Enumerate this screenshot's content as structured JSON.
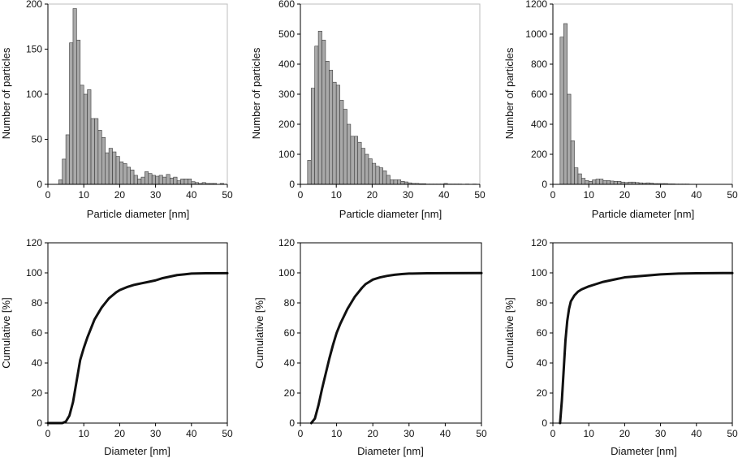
{
  "colors": {
    "bar_fill": "#a9a9a9",
    "bar_stroke": "#3a3a3a",
    "axis": "#000000",
    "curve": "#111111",
    "background": "#ffffff"
  },
  "chart_data": [
    {
      "type": "bar",
      "xlabel": "Particle diameter [nm]",
      "ylabel": "Number of particles",
      "xlim": [
        0,
        50
      ],
      "ylim": [
        0,
        200
      ],
      "xticks": [
        0,
        10,
        20,
        30,
        40,
        50
      ],
      "yticks": [
        0,
        50,
        100,
        150,
        200
      ],
      "bin_width": 1,
      "bin_starts": [
        3,
        4,
        5,
        6,
        7,
        8,
        9,
        10,
        11,
        12,
        13,
        14,
        15,
        16,
        17,
        18,
        19,
        20,
        21,
        22,
        23,
        24,
        25,
        26,
        27,
        28,
        29,
        30,
        31,
        32,
        33,
        34,
        35,
        36,
        37,
        38,
        39,
        40,
        41,
        42,
        43,
        44,
        45,
        46,
        47,
        48,
        49
      ],
      "values": [
        5,
        28,
        55,
        157,
        195,
        160,
        110,
        100,
        105,
        73,
        73,
        60,
        52,
        35,
        40,
        36,
        31,
        25,
        23,
        19,
        16,
        10,
        6,
        8,
        14,
        12,
        10,
        9,
        10,
        8,
        11,
        7,
        8,
        4,
        6,
        6,
        6,
        3,
        2,
        1,
        2,
        1,
        1,
        1,
        0,
        1,
        0
      ],
      "legend": "none",
      "grid": false
    },
    {
      "type": "bar",
      "xlabel": "Particle diameter [nm]",
      "ylabel": "Number of particles",
      "xlim": [
        0,
        50
      ],
      "ylim": [
        0,
        600
      ],
      "xticks": [
        0,
        10,
        20,
        30,
        40,
        50
      ],
      "yticks": [
        0,
        100,
        200,
        300,
        400,
        500,
        600
      ],
      "bin_width": 1,
      "bin_starts": [
        2,
        3,
        4,
        5,
        6,
        7,
        8,
        9,
        10,
        11,
        12,
        13,
        14,
        15,
        16,
        17,
        18,
        19,
        20,
        21,
        22,
        23,
        24,
        25,
        26,
        27,
        28,
        29,
        30,
        31,
        32,
        33,
        34,
        35,
        36,
        37,
        38,
        39,
        40,
        41,
        42,
        43,
        44,
        45,
        46,
        47,
        48,
        49
      ],
      "values": [
        80,
        320,
        460,
        510,
        480,
        410,
        380,
        340,
        330,
        280,
        250,
        200,
        160,
        160,
        140,
        120,
        100,
        85,
        70,
        60,
        55,
        45,
        30,
        15,
        15,
        15,
        10,
        8,
        5,
        3,
        3,
        2,
        2,
        1,
        1,
        1,
        1,
        1,
        3,
        1,
        1,
        1,
        1,
        0,
        1,
        0,
        1,
        0
      ],
      "legend": "none",
      "grid": false
    },
    {
      "type": "bar",
      "xlabel": "Particle diameter [nm]",
      "ylabel": "Number of particles",
      "xlim": [
        0,
        50
      ],
      "ylim": [
        0,
        1200
      ],
      "xticks": [
        0,
        10,
        20,
        30,
        40,
        50
      ],
      "yticks": [
        0,
        200,
        400,
        600,
        800,
        1000,
        1200
      ],
      "bin_width": 1,
      "bin_starts": [
        2,
        3,
        4,
        5,
        6,
        7,
        8,
        9,
        10,
        11,
        12,
        13,
        14,
        15,
        16,
        17,
        18,
        19,
        20,
        21,
        22,
        23,
        24,
        25,
        26,
        27,
        28,
        29,
        30,
        31,
        32,
        33,
        34,
        35,
        36,
        37,
        38,
        39,
        40,
        41,
        42,
        43,
        44,
        45,
        46,
        47,
        48,
        49
      ],
      "values": [
        980,
        1070,
        600,
        290,
        110,
        70,
        40,
        25,
        20,
        30,
        35,
        35,
        25,
        25,
        22,
        20,
        20,
        15,
        12,
        15,
        15,
        12,
        10,
        8,
        10,
        8,
        5,
        5,
        5,
        5,
        3,
        3,
        2,
        2,
        2,
        2,
        1,
        1,
        1,
        1,
        1,
        1,
        1,
        1,
        1,
        1,
        1,
        1
      ],
      "legend": "none",
      "grid": false
    },
    {
      "type": "line",
      "xlabel": "Diameter [nm]",
      "ylabel": "Cumulative [%]",
      "xlim": [
        0,
        50
      ],
      "ylim": [
        0,
        120
      ],
      "xticks": [
        0,
        10,
        20,
        30,
        40,
        50
      ],
      "yticks": [
        0,
        20,
        40,
        60,
        80,
        100,
        120
      ],
      "x": [
        0,
        4,
        5,
        6,
        7,
        8,
        9,
        10,
        11,
        12,
        13,
        14,
        15,
        16,
        17,
        18,
        19,
        20,
        22,
        24,
        25,
        26,
        28,
        30,
        32,
        34,
        36,
        38,
        40,
        44,
        50
      ],
      "y": [
        0,
        0,
        1,
        5,
        14,
        28,
        42,
        50,
        57,
        63,
        69,
        73,
        77,
        80,
        83,
        85,
        87,
        88.5,
        90.5,
        92,
        92.5,
        93,
        94,
        95,
        96.5,
        97.5,
        98.5,
        99,
        99.5,
        99.7,
        99.8
      ],
      "legend": "none",
      "grid": false
    },
    {
      "type": "line",
      "xlabel": "Diameter [nm]",
      "ylabel": "Cumulative [%]",
      "xlim": [
        0,
        50
      ],
      "ylim": [
        0,
        120
      ],
      "xticks": [
        0,
        10,
        20,
        30,
        40,
        50
      ],
      "yticks": [
        0,
        20,
        40,
        60,
        80,
        100,
        120
      ],
      "x": [
        3,
        4,
        5,
        6,
        7,
        8,
        9,
        10,
        11,
        12,
        13,
        14,
        15,
        16,
        17,
        18,
        19,
        20,
        22,
        24,
        26,
        28,
        30,
        35,
        40,
        50
      ],
      "y": [
        0,
        3,
        12,
        23,
        33,
        43,
        52,
        60,
        66,
        71,
        76,
        80,
        84,
        87,
        90,
        92.5,
        94,
        95.5,
        97,
        98,
        98.7,
        99.2,
        99.5,
        99.7,
        99.8,
        99.9
      ],
      "legend": "none",
      "grid": false
    },
    {
      "type": "line",
      "xlabel": "Diameter [nm]",
      "ylabel": "Cumulative [%]",
      "xlim": [
        0,
        50
      ],
      "ylim": [
        0,
        120
      ],
      "xticks": [
        0,
        10,
        20,
        30,
        40,
        50
      ],
      "yticks": [
        0,
        20,
        40,
        60,
        80,
        100,
        120
      ],
      "x": [
        2,
        2.5,
        3,
        3.5,
        4,
        4.5,
        5,
        6,
        7,
        8,
        9,
        10,
        12,
        14,
        16,
        18,
        20,
        25,
        30,
        35,
        40,
        50
      ],
      "y": [
        0,
        15,
        35,
        55,
        68,
        76,
        81,
        85,
        87.5,
        89,
        90,
        91,
        92.5,
        94,
        95,
        96,
        97,
        98,
        99,
        99.5,
        99.7,
        99.9
      ],
      "legend": "none",
      "grid": false
    }
  ]
}
